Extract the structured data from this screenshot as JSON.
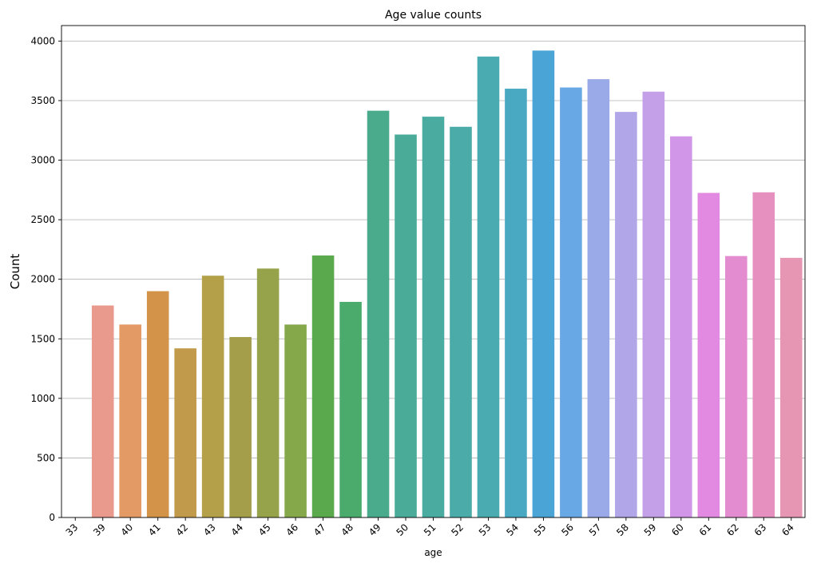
{
  "chart_data": {
    "type": "bar",
    "title": "Age value counts",
    "xlabel": "age",
    "ylabel": "Count",
    "categories": [
      "33",
      "39",
      "40",
      "41",
      "42",
      "43",
      "44",
      "45",
      "46",
      "47",
      "48",
      "49",
      "50",
      "51",
      "52",
      "53",
      "54",
      "55",
      "56",
      "57",
      "58",
      "59",
      "60",
      "61",
      "62",
      "63",
      "64"
    ],
    "values": [
      1,
      1780,
      1620,
      1900,
      1420,
      2030,
      1515,
      2090,
      1620,
      2200,
      1810,
      3415,
      3215,
      3365,
      3280,
      3870,
      3600,
      3920,
      3610,
      3680,
      3405,
      3575,
      3200,
      2725,
      2195,
      2730,
      2180
    ],
    "ylim": [
      0,
      4130
    ],
    "yticks": [
      0,
      500,
      1000,
      1500,
      2000,
      2500,
      3000,
      3500,
      4000
    ],
    "grid": "y-axis only",
    "legend": "none",
    "colors": [
      "#ea9a8c",
      "#ea9a8c",
      "#e49a64",
      "#d3944a",
      "#c29a4c",
      "#b5a04a",
      "#a49e4a",
      "#96a34a",
      "#84a84a",
      "#5aa94c",
      "#4aab6c",
      "#4aab8c",
      "#4aab98",
      "#4aaba0",
      "#4aaba8",
      "#4aabb0",
      "#4aa9c2",
      "#4aa5d6",
      "#68a8e4",
      "#9aaae8",
      "#b0a6e8",
      "#c4a0e8",
      "#d296e8",
      "#e28ae2",
      "#e48cd0",
      "#e690c0",
      "#e696b2"
    ]
  }
}
